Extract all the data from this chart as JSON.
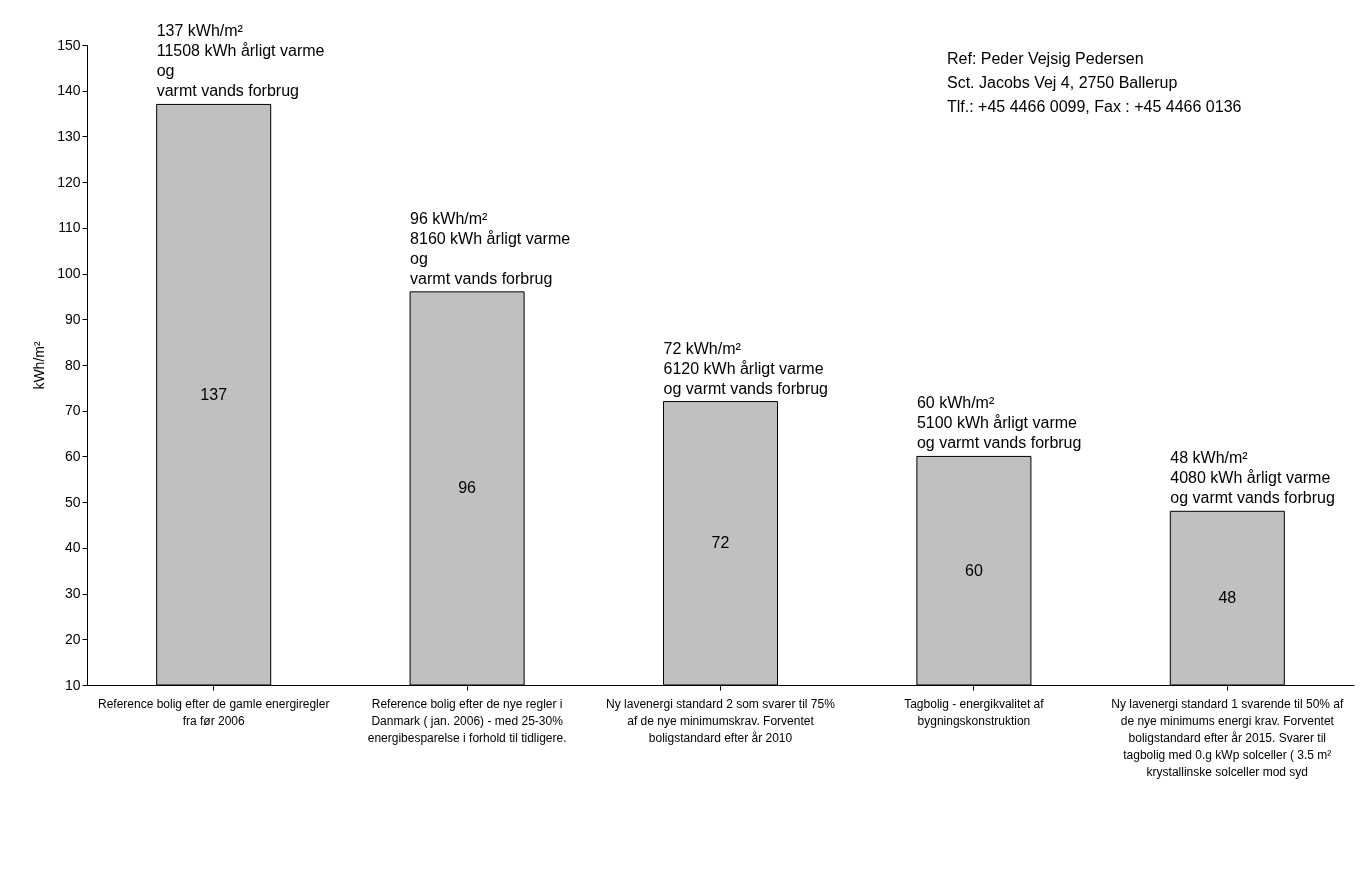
{
  "chart_data": {
    "type": "bar",
    "ylabel": "kWh/m²",
    "categories": [
      "Reference bolig efter de gamle energiregler fra før 2006",
      "Reference bolig efter de nye regler i Danmark ( jan. 2006) - med 25-30% energibesparelse i forhold til tidligere.",
      "Ny lavenergi standard 2 som svarer til 75% af de nye minimumskrav. Forventet boligstandard efter år 2010",
      "Tagbolig - energikvalitet af bygningskonstruktion",
      "Ny lavenergi standard 1 svarende til 50% af de nye minimums energi krav. Forventet boligstandard efter år 2015. Svarer til tagbolig med 0.g kWp solceller ( 3.5 m² krystallinske solceller mod syd"
    ],
    "values": [
      137,
      96,
      72,
      60,
      48
    ],
    "color": "#c0c0c0",
    "data_labels": true,
    "ylim": [
      10,
      150
    ],
    "yticks": [
      10,
      20,
      30,
      40,
      50,
      60,
      70,
      80,
      90,
      100,
      110,
      120,
      130,
      140,
      150
    ],
    "grid": false,
    "annotations": [
      {
        "text": "137 kWh/m²\n11508 kWh årligt varme\nog\nvarmt vands forbrug",
        "x": "Reference bolig efter de gamle energiregler fra før 2006",
        "y": 137
      },
      {
        "text": "96 kWh/m²\n8160 kWh årligt varme\nog\nvarmt vands forbrug",
        "x": "Reference bolig efter de nye regler i Danmark ( jan. 2006) - med 25-30% energibesparelse i forhold til tidligere.",
        "y": 96
      },
      {
        "text": "72 kWh/m²\n6120 kWh årligt varme\nog varmt vands forbrug",
        "x": "Ny lavenergi standard 2 som svarer til 75% af de nye minimumskrav. Forventet boligstandard efter år 2010",
        "y": 72
      },
      {
        "text": "60 kWh/m²\n5100 kWh årligt varme\nog varmt vands forbrug",
        "x": "Tagbolig - energikvalitet af bygningskonstruktion",
        "y": 60
      },
      {
        "text": "48 kWh/m²\n4080 kWh årligt varme\nog varmt vands forbrug",
        "x": "Ny lavenergi standard 1 svarende til 50% af de nye minimums energi krav. Forventet boligstandard efter år 2015. Svarer til tagbolig med 0.g kWp solceller ( 3.5 m² krystallinske solceller mod syd",
        "y": 48
      },
      "Ref:  Peder Vejsig Pedersen\nSct. Jacobs Vej 4, 2750 Ballerup\nTlf.: +45 4466 0099, Fax : +45 4466 0136"
    ]
  }
}
